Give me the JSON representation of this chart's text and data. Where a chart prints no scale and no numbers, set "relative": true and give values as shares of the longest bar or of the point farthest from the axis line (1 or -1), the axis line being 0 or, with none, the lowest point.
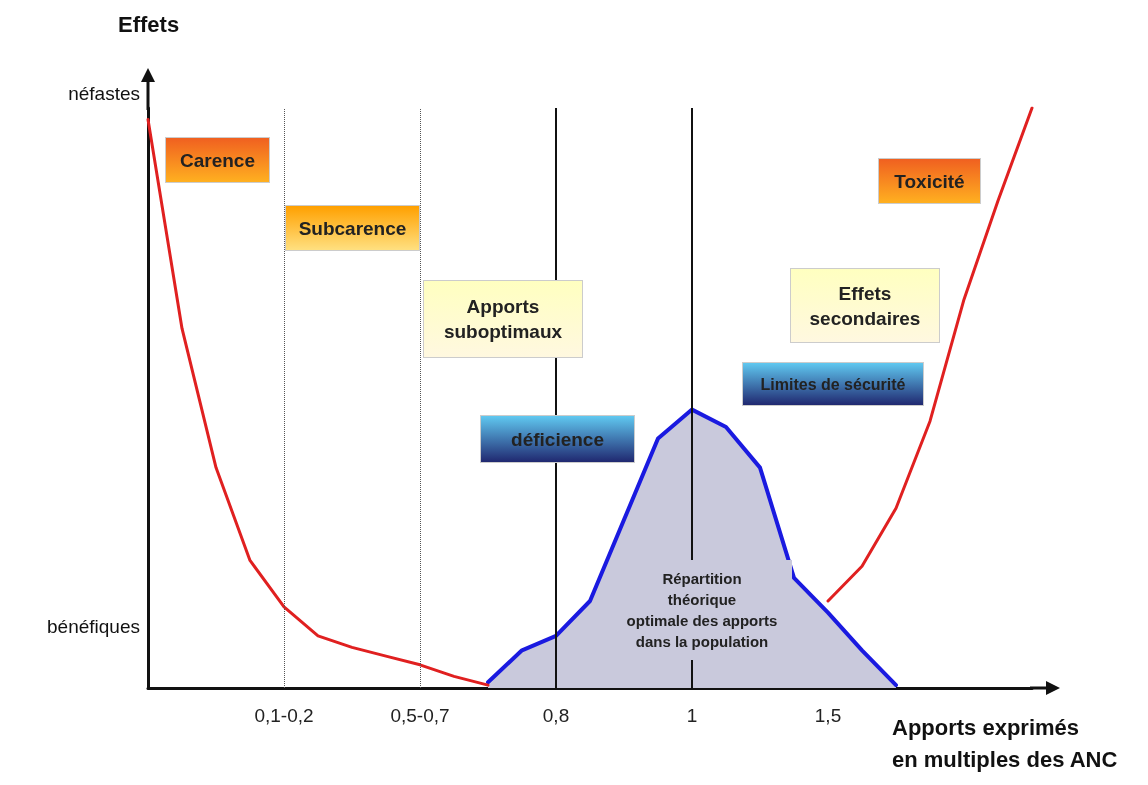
{
  "chart_data": {
    "type": "line",
    "relative": true,
    "xlabel": "Apports exprimés\nen multiples des ANC",
    "ylabel": "Effets",
    "categories": [
      null,
      null,
      null,
      null,
      "0,1-0,2",
      null,
      null,
      null,
      "0,5-0,7",
      null,
      null,
      null,
      "0,8",
      null,
      null,
      null,
      "1",
      null,
      null,
      null,
      "1,5",
      null,
      null,
      null,
      null,
      null,
      null
    ],
    "series": [
      {
        "color": "#e02020",
        "values": [
          0.98,
          0.62,
          0.38,
          0.22,
          0.14,
          0.09,
          0.07,
          0.055,
          0.04,
          0.02,
          0.005,
          null,
          null,
          null,
          null,
          null,
          null,
          null,
          null,
          null,
          0.15,
          0.21,
          0.31,
          0.46,
          0.67,
          0.84,
          1.0
        ]
      },
      {
        "type": "area",
        "color": "#1a1ae0",
        "values": [
          null,
          null,
          null,
          null,
          null,
          null,
          null,
          null,
          null,
          null,
          0.01,
          0.065,
          0.09,
          0.15,
          0.29,
          0.43,
          0.48,
          0.45,
          0.38,
          0.19,
          0.13,
          0.065,
          0.005,
          null,
          null,
          null,
          null
        ]
      }
    ],
    "ref_lines": [
      {
        "axis": "x",
        "value": "0,1-0,2",
        "line_style": "dotted",
        "color": "#555555"
      },
      {
        "axis": "x",
        "value": "0,5-0,7",
        "line_style": "dotted",
        "color": "#555555"
      },
      {
        "axis": "x",
        "value": "0,8",
        "line_style": "solid",
        "color": "#111111"
      },
      {
        "axis": "x",
        "value": "1",
        "line_style": "solid",
        "color": "#111111"
      }
    ],
    "annotations": [
      "néfastes",
      "bénéfiques",
      "Carence",
      "Subcarence",
      "Apports\nsuboptimaux",
      "déficience",
      "Répartition\nthéorique\noptimale des apports\ndans la population",
      "Effets\nsecondaires",
      "Toxicité",
      "Limites de sécurité"
    ],
    "grid": false,
    "marker": "none",
    "line_style": "solid"
  }
}
